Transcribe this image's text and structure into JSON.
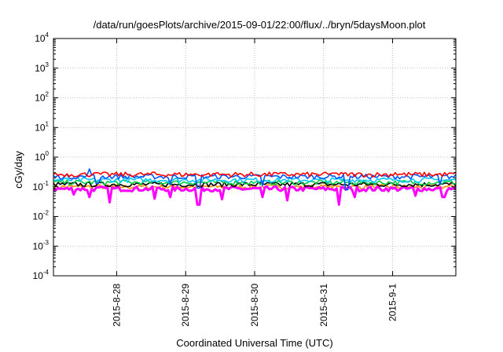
{
  "chart_data": {
    "type": "line",
    "title": "/data/run/goesPlots/archive/2015-09-01/22:00/flux/../bryn/5daysMoon.plot",
    "xlabel": "Coordinated Universal Time (UTC)",
    "ylabel": "cGy/day",
    "yscale": "log",
    "ylim": [
      0.0001,
      10000
    ],
    "xlim": [
      "2015-08-27 02:00",
      "2015-09-01 22:00"
    ],
    "grid": true,
    "x_ticks": [
      "2015-8-28",
      "2015-8-29",
      "2015-8-30",
      "2015-8-31",
      "2015-9-1"
    ],
    "y_ticks": [
      {
        "base": "10",
        "exp": "4",
        "value": 10000
      },
      {
        "base": "10",
        "exp": "3",
        "value": 1000
      },
      {
        "base": "10",
        "exp": "2",
        "value": 100
      },
      {
        "base": "10",
        "exp": "1",
        "value": 10
      },
      {
        "base": "10",
        "exp": "0",
        "value": 1
      },
      {
        "base": "10",
        "exp": "-1",
        "value": 0.1
      },
      {
        "base": "10",
        "exp": "-2",
        "value": 0.01
      },
      {
        "base": "10",
        "exp": "-3",
        "value": 0.001
      },
      {
        "base": "10",
        "exp": "-4",
        "value": 0.0001
      }
    ],
    "series": [
      {
        "color": "#ff0000",
        "typical_value": 0.26,
        "spikes": [
          [
            0.0,
            0.27
          ],
          [
            0.1,
            0.29
          ],
          [
            0.25,
            0.31
          ],
          [
            0.4,
            0.28
          ],
          [
            0.55,
            0.3
          ],
          [
            0.7,
            0.29
          ],
          [
            0.85,
            0.3
          ],
          [
            1.0,
            0.31
          ]
        ]
      },
      {
        "color": "#0055ff",
        "typical_value": 0.22,
        "spikes": [
          [
            0.09,
            0.4
          ],
          [
            0.11,
            0.13
          ],
          [
            0.29,
            0.12
          ],
          [
            0.36,
            0.09
          ],
          [
            0.52,
            0.11
          ],
          [
            0.73,
            0.08
          ],
          [
            0.96,
            0.12
          ]
        ]
      },
      {
        "color": "#00c8ff",
        "typical_value": 0.17
      },
      {
        "color": "#00cc44",
        "typical_value": 0.14
      },
      {
        "color": "#000000",
        "typical_value": 0.12
      },
      {
        "color": "#ff00ff",
        "typical_value": 0.085,
        "dips": [
          [
            0.05,
            0.055
          ],
          [
            0.09,
            0.045
          ],
          [
            0.14,
            0.03
          ],
          [
            0.25,
            0.04
          ],
          [
            0.29,
            0.045
          ],
          [
            0.36,
            0.025
          ],
          [
            0.42,
            0.038
          ],
          [
            0.52,
            0.045
          ],
          [
            0.58,
            0.035
          ],
          [
            0.71,
            0.025
          ],
          [
            0.75,
            0.045
          ],
          [
            0.9,
            0.05
          ],
          [
            0.97,
            0.045
          ]
        ]
      },
      {
        "color": "#ff8c00",
        "typical_value": 0.1
      }
    ]
  }
}
